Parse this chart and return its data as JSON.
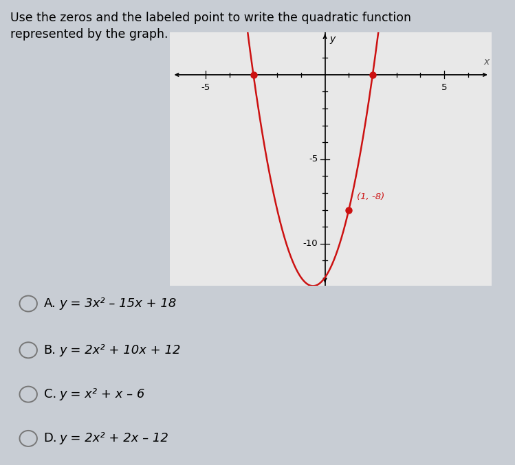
{
  "title_line1": "Use the zeros and the labeled point to write the quadratic function",
  "title_line2": "represented by the graph.",
  "title_fontsize": 12.5,
  "graph_bg": "#e8e8e8",
  "outer_bg": "#c8cdd4",
  "curve_color": "#cc1111",
  "dot_color": "#cc1111",
  "zeros": [
    -3,
    2
  ],
  "labeled_point": [
    1,
    -8
  ],
  "labeled_point_text": "(1, -8)",
  "labeled_point_color": "#cc1111",
  "axis_label_x": "x",
  "axis_label_y": "y",
  "xlim": [
    -6.5,
    7.0
  ],
  "ylim": [
    -12.5,
    2.5
  ],
  "xtick_labeled": [
    -5,
    5
  ],
  "ytick_labeled": [
    -10,
    -5
  ],
  "a_coeff": 2,
  "b_coeff": 2,
  "c_coeff": -12,
  "choice_fontsize": 13,
  "label_fontsize": 9.5
}
